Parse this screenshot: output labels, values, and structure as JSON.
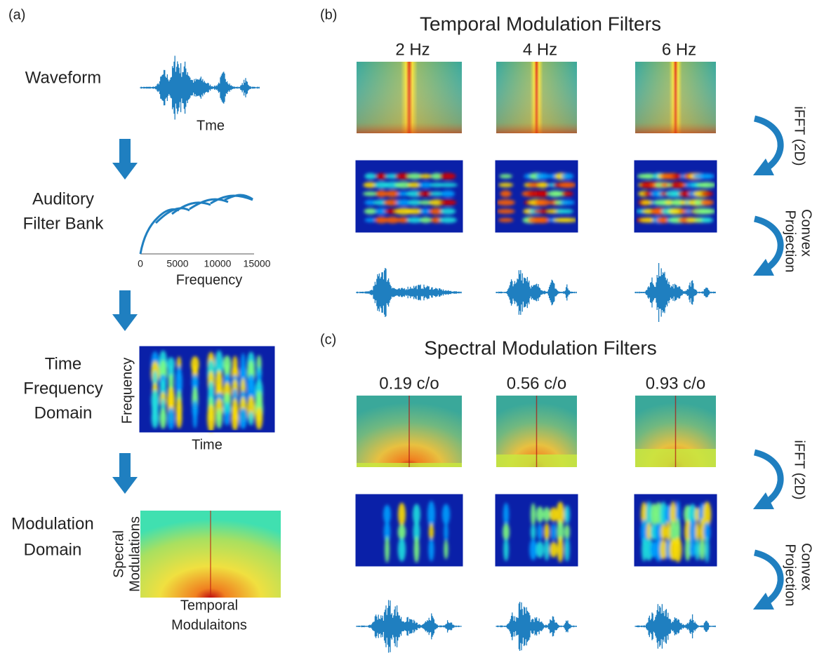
{
  "panel_a": {
    "label": "(a)",
    "waveform": {
      "label": "Waveform",
      "axis": "Tme"
    },
    "filter_bank": {
      "label": [
        "Auditory",
        "Filter Bank"
      ],
      "ticks": [
        "0",
        "5000",
        "10000",
        "15000"
      ],
      "axis": "Frequency"
    },
    "time_frequency": {
      "label": [
        "Time",
        "Frequency",
        "Domain"
      ],
      "y_axis": "Frequency",
      "x_axis": "Time"
    },
    "modulation": {
      "label": [
        "Modulation",
        "Domain"
      ],
      "y_axis": [
        "Specral",
        "Modulations"
      ],
      "x_axis": [
        "Temporal",
        "Modulaitons"
      ]
    }
  },
  "panel_b": {
    "label": "(b)",
    "title": "Temporal Modulation Filters",
    "columns": [
      "2 Hz",
      "4 Hz",
      "6 Hz"
    ],
    "arrow_1": "iFFT (2D)",
    "arrow_2": [
      "Convex",
      "Projection"
    ]
  },
  "panel_c": {
    "label": "(c)",
    "title": "Spectral Modulation Filters",
    "columns": [
      "0.19 c/o",
      "0.56 c/o",
      "0.93 c/o"
    ],
    "arrow_1": "iFFT (2D)",
    "arrow_2": [
      "Convex",
      "Projection"
    ]
  }
}
